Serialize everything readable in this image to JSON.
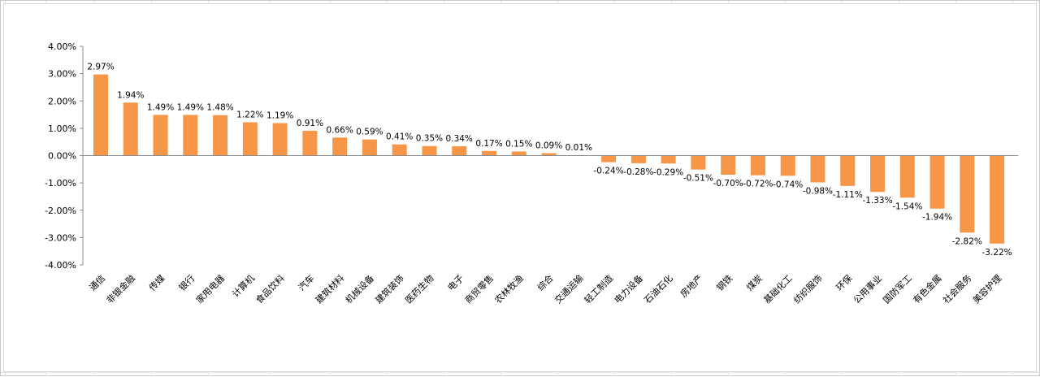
{
  "chart_data": {
    "type": "bar",
    "categories": [
      "通信",
      "非银金融",
      "传媒",
      "银行",
      "家用电器",
      "计算机",
      "食品饮料",
      "汽车",
      "建筑材料",
      "机械设备",
      "建筑装饰",
      "医药生物",
      "电子",
      "商贸零售",
      "农林牧渔",
      "综合",
      "交通运输",
      "轻工制造",
      "电力设备",
      "石油石化",
      "房地产",
      "钢铁",
      "煤炭",
      "基础化工",
      "纺织服饰",
      "环保",
      "公用事业",
      "国防军工",
      "有色金属",
      "社会服务",
      "美容护理"
    ],
    "values": [
      2.97,
      1.94,
      1.49,
      1.49,
      1.48,
      1.22,
      1.19,
      0.91,
      0.66,
      0.59,
      0.41,
      0.35,
      0.34,
      0.17,
      0.15,
      0.09,
      0.01,
      -0.24,
      -0.28,
      -0.29,
      -0.51,
      -0.7,
      -0.72,
      -0.74,
      -0.98,
      -1.11,
      -1.33,
      -1.54,
      -1.94,
      -2.82,
      -3.22
    ],
    "data_labels": [
      "2.97%",
      "1.94%",
      "1.49%",
      "1.49%",
      "1.48%",
      "1.22%",
      "1.19%",
      "0.91%",
      "0.66%",
      "0.59%",
      "0.41%",
      "0.35%",
      "0.34%",
      "0.17%",
      "0.15%",
      "0.09%",
      "0.01%",
      "-0.24%",
      "-0.28%",
      "-0.29%",
      "-0.51%",
      "-0.70%",
      "-0.72%",
      "-0.74%",
      "-0.98%",
      "-1.11%",
      "-1.33%",
      "-1.54%",
      "-1.94%",
      "-2.82%",
      "-3.22%"
    ],
    "ylim": [
      -4,
      4
    ],
    "y_ticks": [
      4,
      3,
      2,
      1,
      0,
      -1,
      -2,
      -3,
      -4
    ],
    "y_tick_labels": [
      "4.00%",
      "3.00%",
      "2.00%",
      "1.00%",
      "0.00%",
      "-1.00%",
      "-2.00%",
      "-3.00%",
      "-4.00%"
    ],
    "bar_color": "#F79646",
    "grid": false,
    "legend": "none",
    "title": "",
    "xlabel": "",
    "ylabel": ""
  }
}
